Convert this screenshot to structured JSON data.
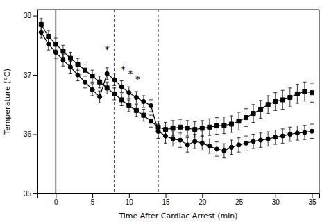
{
  "chart_data": {
    "type": "line",
    "xlabel": "Time After Cardiac Arrest (min)",
    "ylabel": "Temperature (°C)",
    "xlim": [
      -2.5,
      36
    ],
    "ylim": [
      35,
      38.1
    ],
    "xticks": [
      0,
      5,
      10,
      15,
      20,
      25,
      30,
      35
    ],
    "yticks": [
      35,
      36,
      37,
      38
    ],
    "series": [
      {
        "color": "black",
        "marker": "square",
        "line_style": "solid",
        "x": [
          -2,
          -1,
          0,
          1,
          2,
          3,
          4,
          5,
          6,
          7,
          8,
          9,
          10,
          11,
          12,
          13,
          14,
          15,
          16,
          17,
          18,
          19,
          20,
          21,
          22,
          23,
          24,
          25,
          26,
          27,
          28,
          29,
          30,
          31,
          32,
          33,
          34,
          35
        ],
        "values": [
          37.85,
          37.65,
          37.52,
          37.4,
          37.28,
          37.18,
          37.08,
          36.98,
          36.88,
          36.78,
          36.68,
          36.58,
          36.48,
          36.4,
          36.32,
          36.22,
          36.12,
          36.08,
          36.1,
          36.12,
          36.1,
          36.08,
          36.1,
          36.12,
          36.14,
          36.15,
          36.17,
          36.22,
          36.28,
          36.35,
          36.42,
          36.5,
          36.55,
          36.58,
          36.62,
          36.68,
          36.72,
          36.7
        ],
        "yerr": [
          0.1,
          0.1,
          0.1,
          0.1,
          0.1,
          0.1,
          0.1,
          0.1,
          0.1,
          0.1,
          0.1,
          0.1,
          0.1,
          0.1,
          0.1,
          0.1,
          0.1,
          0.12,
          0.13,
          0.13,
          0.13,
          0.13,
          0.13,
          0.14,
          0.14,
          0.14,
          0.14,
          0.15,
          0.15,
          0.15,
          0.15,
          0.15,
          0.15,
          0.16,
          0.16,
          0.16,
          0.16,
          0.16
        ]
      },
      {
        "color": "black",
        "marker": "circle",
        "line_style": "solid",
        "x": [
          -2,
          -1,
          0,
          1,
          2,
          3,
          4,
          5,
          6,
          7,
          8,
          9,
          10,
          11,
          12,
          13,
          14,
          15,
          16,
          17,
          18,
          19,
          20,
          21,
          22,
          23,
          24,
          25,
          26,
          27,
          28,
          29,
          30,
          31,
          32,
          33,
          34,
          35
        ],
        "values": [
          37.72,
          37.52,
          37.38,
          37.25,
          37.13,
          37.0,
          36.88,
          36.75,
          36.63,
          37.02,
          36.92,
          36.8,
          36.7,
          36.62,
          36.55,
          36.48,
          36.05,
          35.97,
          35.92,
          35.9,
          35.82,
          35.88,
          35.85,
          35.8,
          35.75,
          35.72,
          35.78,
          35.82,
          35.85,
          35.88,
          35.9,
          35.92,
          35.95,
          35.97,
          36.0,
          36.02,
          36.03,
          36.05
        ],
        "yerr": [
          0.1,
          0.1,
          0.1,
          0.1,
          0.1,
          0.1,
          0.1,
          0.1,
          0.1,
          0.1,
          0.1,
          0.1,
          0.1,
          0.1,
          0.1,
          0.1,
          0.12,
          0.12,
          0.12,
          0.12,
          0.12,
          0.12,
          0.12,
          0.12,
          0.12,
          0.12,
          0.12,
          0.12,
          0.12,
          0.12,
          0.12,
          0.12,
          0.12,
          0.12,
          0.12,
          0.12,
          0.12,
          0.12
        ]
      }
    ],
    "vlines": [
      {
        "x": 0,
        "line_style": "solid"
      },
      {
        "x": 8,
        "line_style": "dashed"
      },
      {
        "x": 14,
        "line_style": "dashed"
      }
    ],
    "annotations": [
      {
        "text": "*",
        "x": 7.0,
        "y": 37.38
      },
      {
        "text": "*",
        "x": 9.2,
        "y": 37.04
      },
      {
        "text": "*",
        "x": 10.2,
        "y": 36.97
      },
      {
        "text": "*",
        "x": 11.2,
        "y": 36.87
      }
    ]
  }
}
